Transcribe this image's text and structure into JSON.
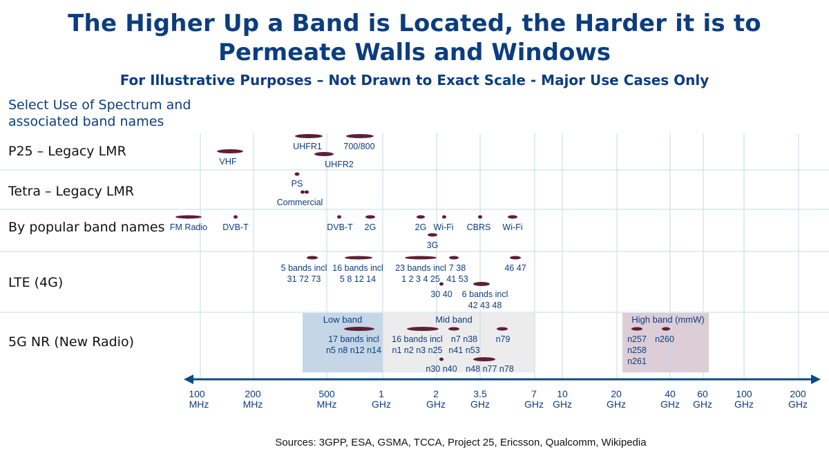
{
  "title_line1": "The Higher Up a Band is Located, the Harder it is to",
  "title_line2": "Permeate Walls and Windows",
  "subtitle": "For Illustrative Purposes – Not Drawn to Exact Scale - Major Use Cases Only",
  "intro_line1": "Select Use of Spectrum and",
  "intro_line2": "associated band names",
  "rows": [
    "P25 – Legacy LMR",
    "Tetra – Legacy LMR",
    "By popular band names",
    "LTE (4G)",
    "5G NR (New Radio)"
  ],
  "regions": {
    "low": "Low band",
    "mid": "Mid band",
    "high": "High band (mmW)"
  },
  "axis_ticks": [
    {
      "l1": "100",
      "l2": "MHz"
    },
    {
      "l1": "200",
      "l2": "MHz"
    },
    {
      "l1": "500",
      "l2": "MHz"
    },
    {
      "l1": "1",
      "l2": "GHz"
    },
    {
      "l1": "2",
      "l2": "GHz"
    },
    {
      "l1": "3.5",
      "l2": "GHz"
    },
    {
      "l1": "7",
      "l2": "GHz"
    },
    {
      "l1": "10",
      "l2": "GHz"
    },
    {
      "l1": "20",
      "l2": "GHz"
    },
    {
      "l1": "40",
      "l2": "GHz"
    },
    {
      "l1": "60",
      "l2": "GHz"
    },
    {
      "l1": "100",
      "l2": "GHz"
    },
    {
      "l1": "200",
      "l2": "GHz"
    }
  ],
  "band_labels": {
    "p25": [
      "UHFR1",
      "700/800",
      "VHF",
      "UHFR2"
    ],
    "tetra": [
      "PS",
      "Commercial"
    ],
    "popular": [
      "FM Radio",
      "DVB-T",
      "DVB-T",
      "2G",
      "2G",
      "Wi-Fi",
      "CBRS",
      "Wi-Fi",
      "3G"
    ],
    "lte": [
      "5 bands incl",
      "31 72 73",
      "16 bands incl",
      "5 8 12 14",
      "23 bands incl",
      "1 2 3 4 25",
      "7 38",
      "41 53",
      "46 47",
      "30 40",
      "6 bands incl",
      "42 43 48"
    ],
    "nr": [
      "17 bands incl",
      "n5 n8 n12 n14",
      "16 bands incl",
      "n1 n2 n3 n25",
      "n7 n38",
      "n41 n53",
      "n79",
      "n30 n40",
      "n48 n77 n78",
      "n257",
      "n258",
      "n261",
      "n260"
    ]
  },
  "sources": "Sources: 3GPP, ESA, GSMA, TCCA, Project 25, Ericsson, Qualcomm, Wikipedia",
  "colors": {
    "title": "#0b3d7f",
    "ellipse": "#5e1f35",
    "low": "#c5d6e6",
    "mid": "#ececec",
    "high": "#dccdd6",
    "grid": "#c7d8ea"
  }
}
